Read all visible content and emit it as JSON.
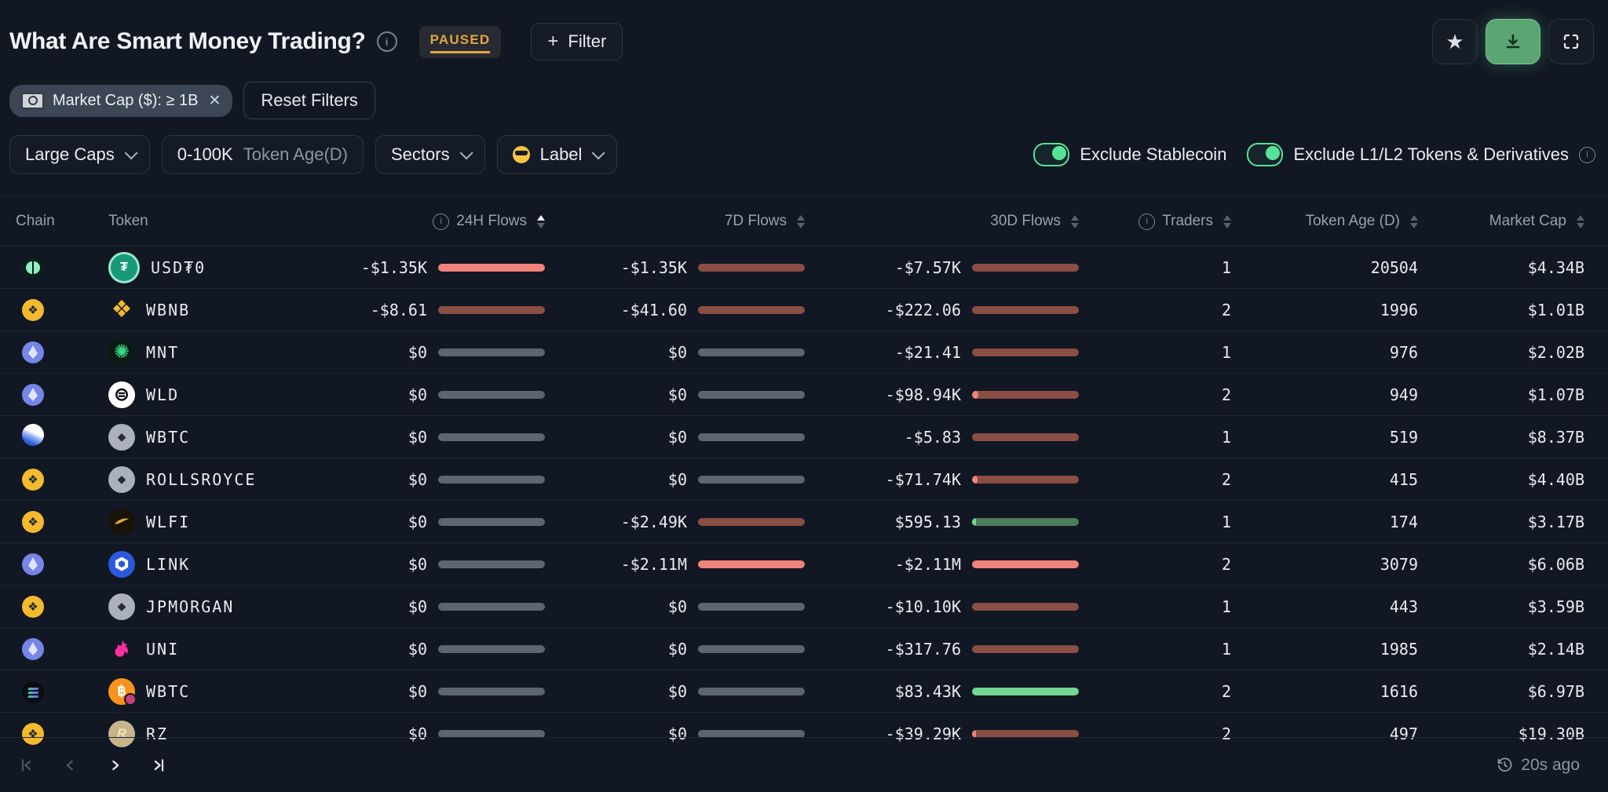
{
  "header": {
    "title": "What Are Smart Money Trading?",
    "status_badge": "PAUSED",
    "filter_button": "+ Filter"
  },
  "filter_chips": {
    "market_cap_chip": "Market Cap ($): ≥ 1B",
    "reset_button": "Reset Filters"
  },
  "filter_bar": {
    "large_caps_label": "Large Caps",
    "token_age_value": "0-100K",
    "token_age_label": "Token Age(D)",
    "sectors_label": "Sectors",
    "label_filter_label": "Label",
    "toggles": [
      {
        "label": "Exclude Stablecoin",
        "on": true
      },
      {
        "label": "Exclude L1/L2 Tokens & Derivatives",
        "on": true,
        "info": true
      }
    ]
  },
  "table": {
    "columns": [
      {
        "label": "Chain",
        "align": "left",
        "sortable": false
      },
      {
        "label": "Token",
        "align": "left",
        "sortable": false
      },
      {
        "label": "24H Flows",
        "align": "right",
        "info": true,
        "sortable": true,
        "sort": "asc"
      },
      {
        "label": "7D Flows",
        "align": "right",
        "sortable": true,
        "sort": null
      },
      {
        "label": "30D Flows",
        "align": "right",
        "sortable": true,
        "sort": null
      },
      {
        "label": "Traders",
        "align": "right",
        "info": true,
        "sortable": true,
        "sort": null
      },
      {
        "label": "Token Age (D)",
        "align": "right",
        "sortable": true,
        "sort": null
      },
      {
        "label": "Market Cap",
        "align": "right",
        "sortable": true,
        "sort": null
      }
    ],
    "rows": [
      {
        "chain_icon": "plasma-chain-icon",
        "token": "USD₮0",
        "token_icon": "usdt0-token-icon",
        "h24": {
          "text": "-$1.35K",
          "track": "red",
          "fill": 1
        },
        "d7": {
          "text": "-$1.35K",
          "track": "red",
          "fill": 0
        },
        "d30": {
          "text": "-$7.57K",
          "track": "red",
          "fill": 0
        },
        "traders": "1",
        "token_age": "20504",
        "market_cap": "$4.34B"
      },
      {
        "chain_icon": "bnb-chain-icon",
        "token": "WBNB",
        "token_icon": "wbnb-token-icon",
        "h24": {
          "text": "-$8.61",
          "track": "red",
          "fill": 0
        },
        "d7": {
          "text": "-$41.60",
          "track": "red",
          "fill": 0
        },
        "d30": {
          "text": "-$222.06",
          "track": "red",
          "fill": 0
        },
        "traders": "2",
        "token_age": "1996",
        "market_cap": "$1.01B"
      },
      {
        "chain_icon": "eth-chain-icon",
        "token": "MNT",
        "token_icon": "mnt-token-icon",
        "h24": {
          "text": "$0",
          "track": "gray",
          "fill": 0
        },
        "d7": {
          "text": "$0",
          "track": "gray",
          "fill": 0
        },
        "d30": {
          "text": "-$21.41",
          "track": "red",
          "fill": 0
        },
        "traders": "1",
        "token_age": "976",
        "market_cap": "$2.02B"
      },
      {
        "chain_icon": "eth-chain-icon",
        "token": "WLD",
        "token_icon": "wld-token-icon",
        "h24": {
          "text": "$0",
          "track": "gray",
          "fill": 0
        },
        "d7": {
          "text": "$0",
          "track": "gray",
          "fill": 0
        },
        "d30": {
          "text": "-$98.94K",
          "track": "red",
          "fill": 0.06
        },
        "traders": "2",
        "token_age": "949",
        "market_cap": "$1.07B"
      },
      {
        "chain_icon": "blue-orb-chain-icon",
        "token": "WBTC",
        "token_icon": "generic-token-icon",
        "h24": {
          "text": "$0",
          "track": "gray",
          "fill": 0
        },
        "d7": {
          "text": "$0",
          "track": "gray",
          "fill": 0
        },
        "d30": {
          "text": "-$5.83",
          "track": "red",
          "fill": 0
        },
        "traders": "1",
        "token_age": "519",
        "market_cap": "$8.37B"
      },
      {
        "chain_icon": "bnb-chain-icon",
        "token": "ROLLSROYCE",
        "token_icon": "generic-token-icon",
        "h24": {
          "text": "$0",
          "track": "gray",
          "fill": 0
        },
        "d7": {
          "text": "$0",
          "track": "gray",
          "fill": 0
        },
        "d30": {
          "text": "-$71.74K",
          "track": "red",
          "fill": 0.05
        },
        "traders": "2",
        "token_age": "415",
        "market_cap": "$4.40B"
      },
      {
        "chain_icon": "bnb-chain-icon",
        "token": "WLFI",
        "token_icon": "wlfi-token-icon",
        "h24": {
          "text": "$0",
          "track": "gray",
          "fill": 0
        },
        "d7": {
          "text": "-$2.49K",
          "track": "red",
          "fill": 0
        },
        "d30": {
          "text": "$595.13",
          "track": "green",
          "fill": 0.04
        },
        "traders": "1",
        "token_age": "174",
        "market_cap": "$3.17B"
      },
      {
        "chain_icon": "eth-chain-icon",
        "token": "LINK",
        "token_icon": "link-token-icon",
        "h24": {
          "text": "$0",
          "track": "gray",
          "fill": 0
        },
        "d7": {
          "text": "-$2.11M",
          "track": "red",
          "fill": 1
        },
        "d30": {
          "text": "-$2.11M",
          "track": "red",
          "fill": 1
        },
        "traders": "2",
        "token_age": "3079",
        "market_cap": "$6.06B"
      },
      {
        "chain_icon": "bnb-chain-icon",
        "token": "JPMORGAN",
        "token_icon": "generic-token-icon",
        "h24": {
          "text": "$0",
          "track": "gray",
          "fill": 0
        },
        "d7": {
          "text": "$0",
          "track": "gray",
          "fill": 0
        },
        "d30": {
          "text": "-$10.10K",
          "track": "red",
          "fill": 0
        },
        "traders": "1",
        "token_age": "443",
        "market_cap": "$3.59B"
      },
      {
        "chain_icon": "eth-chain-icon",
        "token": "UNI",
        "token_icon": "uni-token-icon",
        "h24": {
          "text": "$0",
          "track": "gray",
          "fill": 0
        },
        "d7": {
          "text": "$0",
          "track": "gray",
          "fill": 0
        },
        "d30": {
          "text": "-$317.76",
          "track": "red",
          "fill": 0
        },
        "traders": "1",
        "token_age": "1985",
        "market_cap": "$2.14B"
      },
      {
        "chain_icon": "solana-chain-icon",
        "token": "WBTC",
        "token_icon": "wbtc-token-icon",
        "h24": {
          "text": "$0",
          "track": "gray",
          "fill": 0
        },
        "d7": {
          "text": "$0",
          "track": "gray",
          "fill": 0
        },
        "d30": {
          "text": "$83.43K",
          "track": "green",
          "fill": 1
        },
        "traders": "2",
        "token_age": "1616",
        "market_cap": "$6.97B"
      },
      {
        "chain_icon": "bnb-chain-icon",
        "token": "RZ",
        "token_icon": "rz-token-icon",
        "h24": {
          "text": "$0",
          "track": "gray",
          "fill": 0
        },
        "d7": {
          "text": "$0",
          "track": "gray",
          "fill": 0
        },
        "d30": {
          "text": "-$39.29K",
          "track": "red",
          "fill": 0.04
        },
        "traders": "2",
        "token_age": "497",
        "market_cap": "$19.30B"
      }
    ]
  },
  "footer": {
    "updated": "20s ago",
    "pagination": {
      "first_enabled": false,
      "prev_enabled": false,
      "next_enabled": true,
      "last_enabled": true
    }
  },
  "colors": {
    "background": "#111723",
    "accent_green": "#57e297",
    "paused_amber": "#e2a440",
    "flow_negative": "#ef837a",
    "flow_negative_muted": "#8a4e45",
    "flow_positive": "#72d893",
    "flow_positive_muted": "#4d7c5a",
    "flow_zero": "#5d6571"
  }
}
